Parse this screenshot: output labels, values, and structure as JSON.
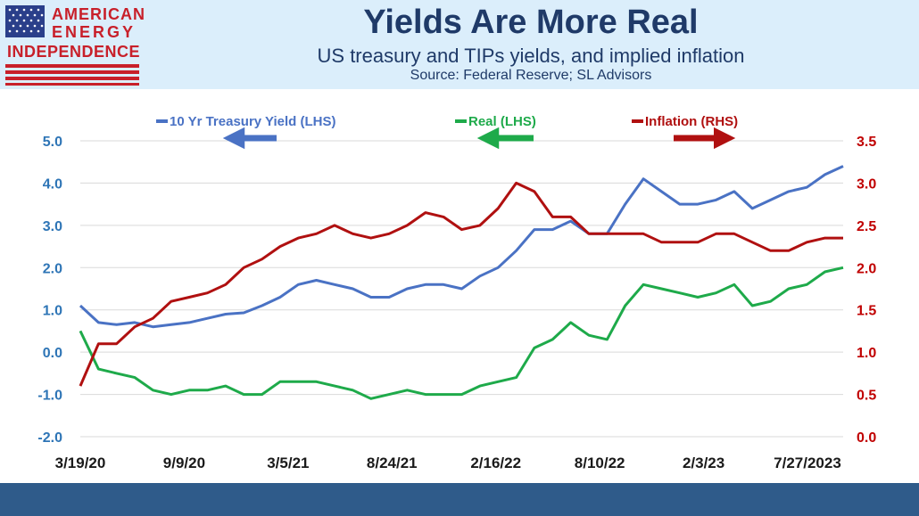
{
  "header": {
    "title": "Yields Are More Real",
    "subtitle": "US treasury and TIPs yields, and implied inflation",
    "source": "Source: Federal Reserve; SL Advisors"
  },
  "logo": {
    "line1": "AMERICAN",
    "line2": "ENERGY",
    "line3": "INDEPENDENCE"
  },
  "colors": {
    "treasury": "#4a72c4",
    "real": "#1eaa4a",
    "inflation": "#b01010",
    "left_axis": "#2e75b6",
    "right_axis": "#c00000"
  },
  "chart_data": {
    "type": "line",
    "x_tick_labels": [
      "3/19/20",
      "9/9/20",
      "3/5/21",
      "8/24/21",
      "2/16/22",
      "8/10/22",
      "2/3/23",
      "7/27/2023"
    ],
    "x": [
      "3/19/20",
      "4/20",
      "5/20",
      "6/20",
      "7/20",
      "8/20",
      "9/9/20",
      "10/20",
      "11/20",
      "12/20",
      "1/21",
      "2/21",
      "3/5/21",
      "4/21",
      "5/21",
      "6/21",
      "7/21",
      "8/24/21",
      "9/21",
      "10/21",
      "11/21",
      "12/21",
      "1/22",
      "2/16/22",
      "3/22",
      "4/22",
      "5/22",
      "6/22",
      "7/22",
      "8/10/22",
      "9/22",
      "10/22",
      "11/22",
      "12/22",
      "1/23",
      "2/3/23",
      "3/23",
      "4/23",
      "5/23",
      "6/23",
      "7/27/2023",
      "8/23",
      "9/23"
    ],
    "y_left": {
      "min": -2.0,
      "max": 5.0,
      "ticks": [
        "-2.0",
        "-1.0",
        "0.0",
        "1.0",
        "2.0",
        "3.0",
        "4.0",
        "5.0"
      ]
    },
    "y_right": {
      "min": 0.0,
      "max": 3.5,
      "ticks": [
        "0.0",
        "0.5",
        "1.0",
        "1.5",
        "2.0",
        "2.5",
        "3.0",
        "3.5"
      ]
    },
    "series": [
      {
        "name": "10 Yr Treasury Yield (LHS)",
        "axis": "left",
        "arrow": "left",
        "values": [
          1.1,
          0.7,
          0.65,
          0.7,
          0.6,
          0.65,
          0.7,
          0.8,
          0.9,
          0.93,
          1.1,
          1.3,
          1.6,
          1.7,
          1.6,
          1.5,
          1.3,
          1.3,
          1.5,
          1.6,
          1.6,
          1.5,
          1.8,
          2.0,
          2.4,
          2.9,
          2.9,
          3.1,
          2.8,
          2.8,
          3.5,
          4.1,
          3.8,
          3.5,
          3.5,
          3.6,
          3.8,
          3.4,
          3.6,
          3.8,
          3.9,
          4.2,
          4.4
        ]
      },
      {
        "name": "Real (LHS)",
        "axis": "left",
        "arrow": "left",
        "values": [
          0.5,
          -0.4,
          -0.5,
          -0.6,
          -0.9,
          -1.0,
          -0.9,
          -0.9,
          -0.8,
          -1.0,
          -1.0,
          -0.7,
          -0.7,
          -0.7,
          -0.8,
          -0.9,
          -1.1,
          -1.0,
          -0.9,
          -1.0,
          -1.0,
          -1.0,
          -0.8,
          -0.7,
          -0.6,
          0.1,
          0.3,
          0.7,
          0.4,
          0.3,
          1.1,
          1.6,
          1.5,
          1.4,
          1.3,
          1.4,
          1.6,
          1.1,
          1.2,
          1.5,
          1.6,
          1.9,
          2.0
        ]
      },
      {
        "name": "Inflation (RHS)",
        "axis": "right",
        "arrow": "right",
        "values": [
          0.6,
          1.1,
          1.1,
          1.3,
          1.4,
          1.6,
          1.65,
          1.7,
          1.8,
          2.0,
          2.1,
          2.25,
          2.35,
          2.4,
          2.5,
          2.4,
          2.35,
          2.4,
          2.5,
          2.65,
          2.6,
          2.45,
          2.5,
          2.7,
          3.0,
          2.9,
          2.6,
          2.6,
          2.4,
          2.4,
          2.4,
          2.4,
          2.3,
          2.3,
          2.3,
          2.4,
          2.4,
          2.3,
          2.2,
          2.2,
          2.3,
          2.35,
          2.35
        ]
      }
    ]
  }
}
